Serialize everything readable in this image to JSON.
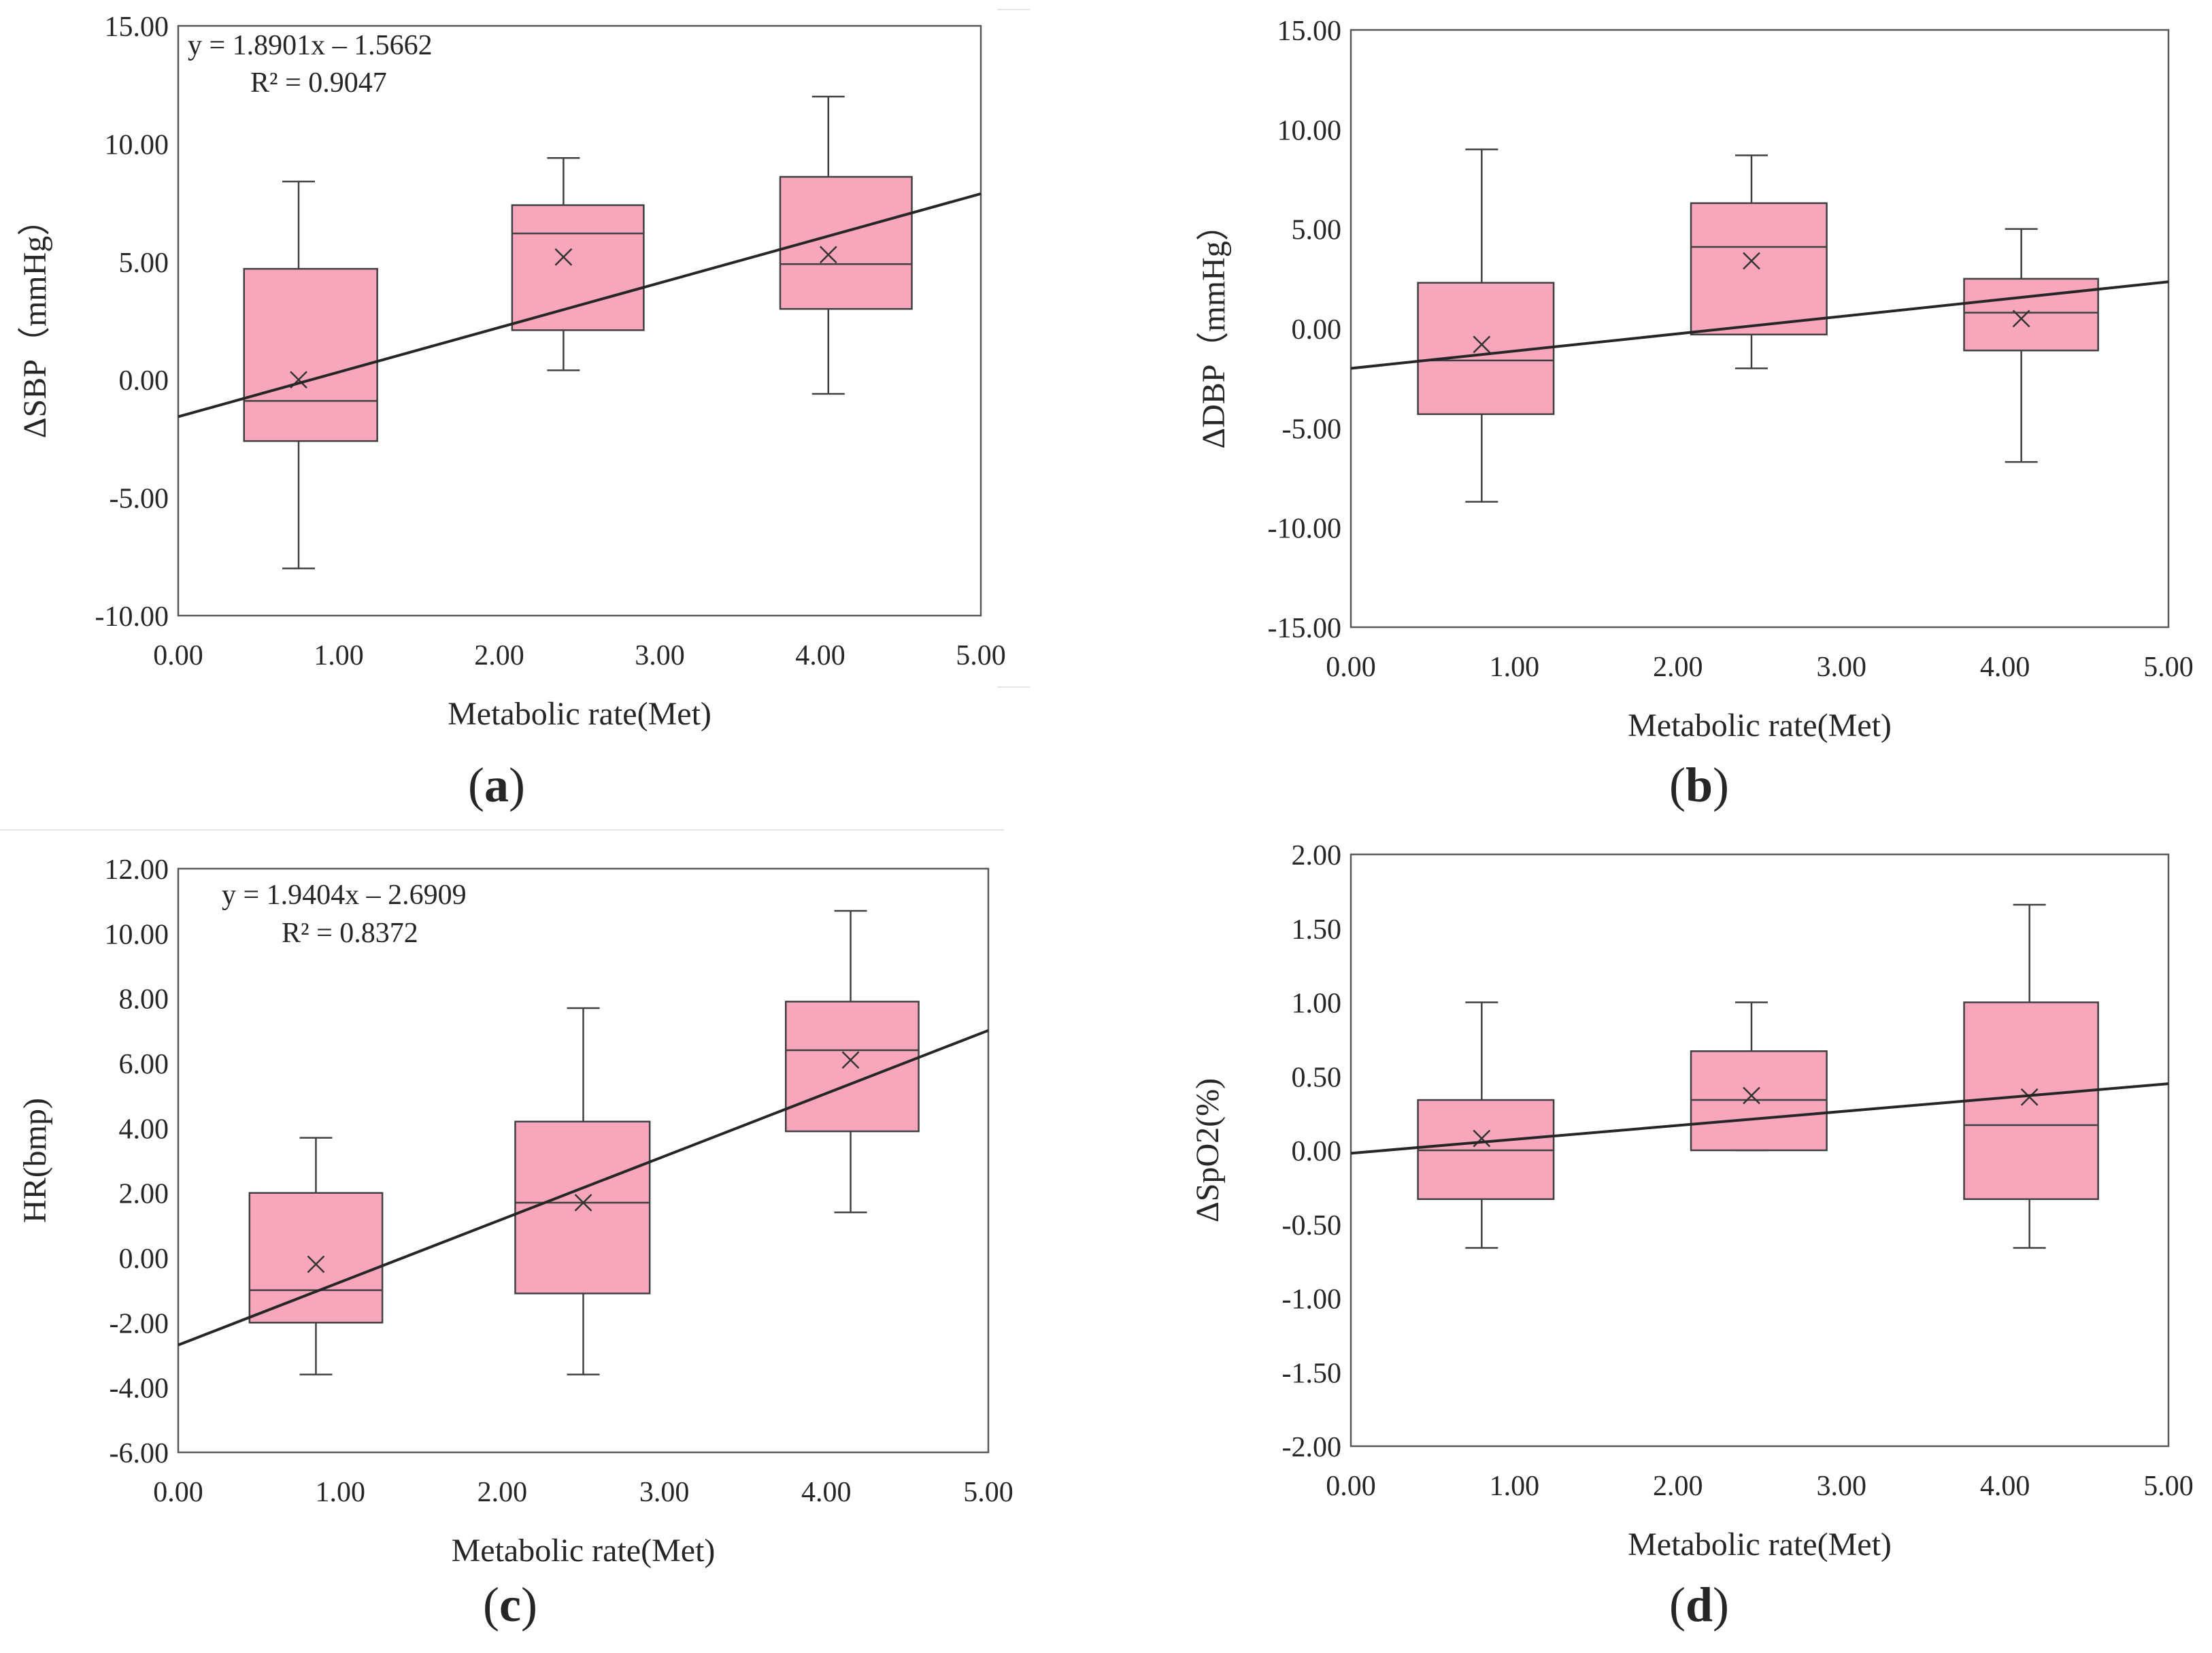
{
  "figure": {
    "panel_labels": [
      "(a)",
      "(b)",
      "(c)",
      "(d)"
    ]
  },
  "chart_data": [
    {
      "type": "box",
      "panel": "(a)",
      "xlabel": "Metabolic rate(Met)",
      "ylabel": "ΔSBP（mmHg）",
      "xlim": [
        0,
        5
      ],
      "ylim": [
        -10,
        15
      ],
      "x_ticks": [
        "0.00",
        "1.00",
        "2.00",
        "3.00",
        "4.00",
        "5.00"
      ],
      "y_ticks": [
        "-10.00",
        "-5.00",
        "0.00",
        "5.00",
        "10.00",
        "15.00"
      ],
      "grid": false,
      "box_color": "#f7a6bb",
      "boxes": [
        {
          "x": 0.75,
          "x_left": 0.41,
          "x_right": 1.24,
          "min": -8.0,
          "q1": -2.6,
          "median": -0.9,
          "q3": 4.7,
          "max": 8.4,
          "mean": 0.0
        },
        {
          "x": 2.4,
          "x_left": 2.08,
          "x_right": 2.9,
          "min": 0.4,
          "q1": 2.1,
          "median": 6.2,
          "q3": 7.4,
          "max": 9.4,
          "mean": 5.2
        },
        {
          "x": 4.05,
          "x_left": 3.75,
          "x_right": 4.57,
          "min": -0.6,
          "q1": 3.0,
          "median": 4.9,
          "q3": 8.6,
          "max": 12.0,
          "mean": 5.3
        }
      ],
      "trendline": {
        "slope": 1.8901,
        "intercept": -1.5662
      },
      "equation": "y = 1.8901x – 1.5662",
      "r_squared": "R² = 0.9047"
    },
    {
      "type": "box",
      "panel": "(b)",
      "xlabel": "Metabolic rate(Met)",
      "ylabel": "ΔDBP（mmHg）",
      "xlim": [
        0,
        5
      ],
      "ylim": [
        -15,
        15
      ],
      "x_ticks": [
        "0.00",
        "1.00",
        "2.00",
        "3.00",
        "4.00",
        "5.00"
      ],
      "y_ticks": [
        "-15.00",
        "-10.00",
        "-5.00",
        "0.00",
        "5.00",
        "10.00",
        "15.00"
      ],
      "grid": false,
      "box_color": "#f7a6bb",
      "boxes": [
        {
          "x": 0.8,
          "x_left": 0.41,
          "x_right": 1.24,
          "min": -8.7,
          "q1": -4.3,
          "median": -1.6,
          "q3": 2.3,
          "max": 9.0,
          "mean": -0.8
        },
        {
          "x": 2.45,
          "x_left": 2.08,
          "x_right": 2.91,
          "min": -2.0,
          "q1": -0.3,
          "median": 4.1,
          "q3": 6.3,
          "max": 8.7,
          "mean": 3.4
        },
        {
          "x": 4.1,
          "x_left": 3.75,
          "x_right": 4.57,
          "min": -6.7,
          "q1": -1.1,
          "median": 0.8,
          "q3": 2.5,
          "max": 5.0,
          "mean": 0.5
        }
      ],
      "trendline": {
        "slope": 0.87,
        "intercept": -2.0
      }
    },
    {
      "type": "box",
      "panel": "(c)",
      "xlabel": "Metabolic rate(Met)",
      "ylabel": "HR(bmp)",
      "xlim": [
        0,
        5
      ],
      "ylim": [
        -6,
        12
      ],
      "x_ticks": [
        "0.00",
        "1.00",
        "2.00",
        "3.00",
        "4.00",
        "5.00"
      ],
      "y_ticks": [
        "-6.00",
        "-4.00",
        "-2.00",
        "0.00",
        "2.00",
        "4.00",
        "6.00",
        "8.00",
        "10.00",
        "12.00"
      ],
      "grid": false,
      "box_color": "#f7a6bb",
      "boxes": [
        {
          "x": 0.85,
          "x_left": 0.44,
          "x_right": 1.26,
          "min": -3.6,
          "q1": -2.0,
          "median": -1.0,
          "q3": 2.0,
          "max": 3.7,
          "mean": -0.2
        },
        {
          "x": 2.5,
          "x_left": 2.08,
          "x_right": 2.91,
          "min": -3.6,
          "q1": -1.1,
          "median": 1.7,
          "q3": 4.2,
          "max": 7.7,
          "mean": 1.7
        },
        {
          "x": 4.15,
          "x_left": 3.75,
          "x_right": 4.57,
          "min": 1.4,
          "q1": 3.9,
          "median": 6.4,
          "q3": 7.9,
          "max": 10.7,
          "mean": 6.1
        }
      ],
      "trendline": {
        "slope": 1.9404,
        "intercept": -2.6909
      },
      "equation": "y = 1.9404x – 2.6909",
      "r_squared": "R² = 0.8372"
    },
    {
      "type": "box",
      "panel": "(d)",
      "xlabel": "Metabolic rate(Met)",
      "ylabel": "ΔSpO2(%)",
      "xlim": [
        0,
        5
      ],
      "ylim": [
        -2,
        2
      ],
      "x_ticks": [
        "0.00",
        "1.00",
        "2.00",
        "3.00",
        "4.00",
        "5.00"
      ],
      "y_ticks": [
        "-2.00",
        "-1.50",
        "-1.00",
        "-0.50",
        "0.00",
        "0.50",
        "1.00",
        "1.50",
        "2.00"
      ],
      "grid": false,
      "box_color": "#f7a6bb",
      "boxes": [
        {
          "x": 0.8,
          "x_left": 0.41,
          "x_right": 1.24,
          "min": -0.66,
          "q1": -0.33,
          "median": 0.0,
          "q3": 0.34,
          "max": 1.0,
          "mean": 0.08
        },
        {
          "x": 2.45,
          "x_left": 2.08,
          "x_right": 2.91,
          "min": 0.0,
          "q1": 0.0,
          "median": 0.34,
          "q3": 0.67,
          "max": 1.0,
          "mean": 0.37
        },
        {
          "x": 4.15,
          "x_left": 3.75,
          "x_right": 4.57,
          "min": -0.66,
          "q1": -0.33,
          "median": 0.17,
          "q3": 1.0,
          "max": 1.66,
          "mean": 0.36
        }
      ],
      "trendline": {
        "slope": 0.094,
        "intercept": -0.02
      }
    }
  ]
}
